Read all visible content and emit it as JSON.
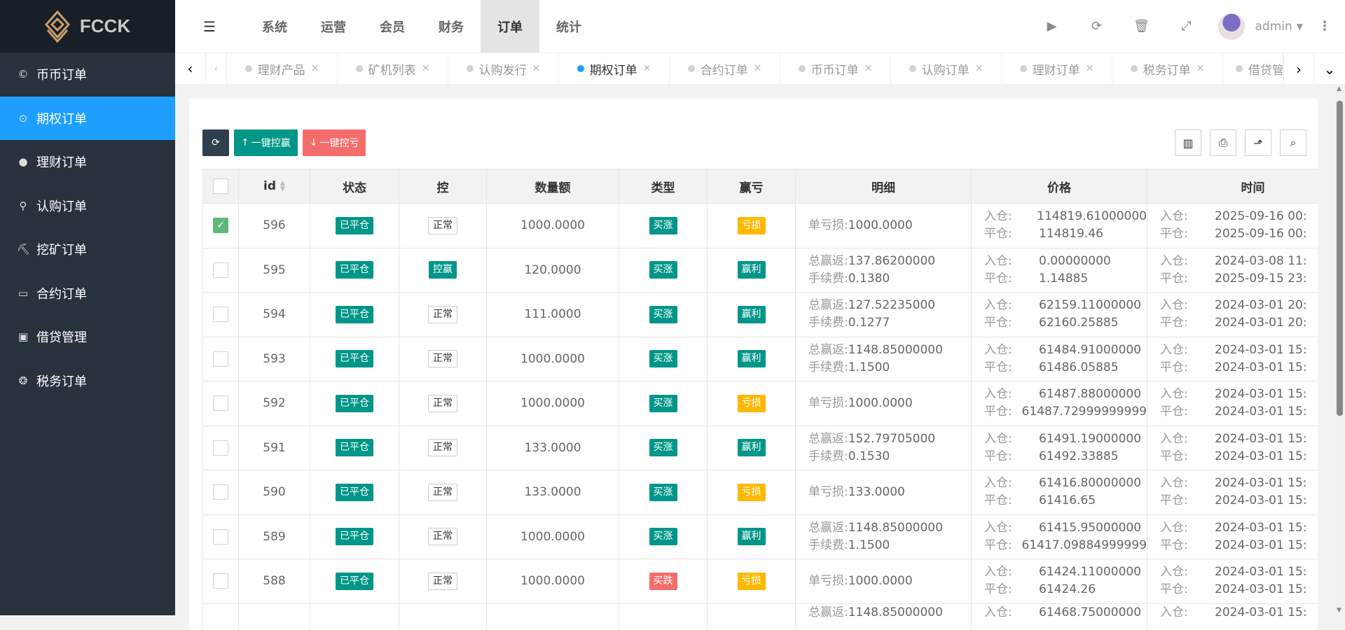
{
  "brand": {
    "name": "FCCK"
  },
  "sidebar": {
    "items": [
      {
        "label": "币币订单",
        "icon": "cc-icon",
        "glyph": "©"
      },
      {
        "label": "期权订单",
        "icon": "target-icon",
        "glyph": "⊙",
        "active": true
      },
      {
        "label": "理财订单",
        "icon": "money-icon",
        "glyph": "●"
      },
      {
        "label": "认购订单",
        "icon": "walk-icon",
        "glyph": "⚲"
      },
      {
        "label": "挖矿订单",
        "icon": "mining-icon",
        "glyph": "⛏"
      },
      {
        "label": "合约订单",
        "icon": "monitor-icon",
        "glyph": "▭"
      },
      {
        "label": "借贷管理",
        "icon": "cash-icon",
        "glyph": "▣"
      },
      {
        "label": "税务订单",
        "icon": "coins-icon",
        "glyph": "❂"
      }
    ]
  },
  "header": {
    "nav": [
      {
        "label": "系统"
      },
      {
        "label": "运营"
      },
      {
        "label": "会员"
      },
      {
        "label": "财务"
      },
      {
        "label": "订单",
        "active": true
      },
      {
        "label": "统计"
      }
    ],
    "user": "admin"
  },
  "tabs": [
    {
      "label": "理财产品"
    },
    {
      "label": "矿机列表"
    },
    {
      "label": "认购发行"
    },
    {
      "label": "期权订单",
      "active": true
    },
    {
      "label": "合约订单"
    },
    {
      "label": "币币订单"
    },
    {
      "label": "认购订单"
    },
    {
      "label": "理财订单"
    },
    {
      "label": "税务订单"
    },
    {
      "label": "借贷管"
    }
  ],
  "toolbar": {
    "win_label": "一键控赢",
    "lose_label": "一键控亏"
  },
  "colors": {
    "accent": "#1e9fff",
    "teal": "#009688",
    "red": "#f56c6c",
    "yellow": "#ffb800",
    "sidebar": "#28333e"
  },
  "table": {
    "headers": [
      "id",
      "状态",
      "控",
      "数量额",
      "类型",
      "赢亏",
      "明细",
      "价格",
      "时间"
    ],
    "labels": {
      "in": "入仓:",
      "out": "平仓:"
    },
    "rows": [
      {
        "checked": true,
        "id": "596",
        "status": "已平仓",
        "ctrl": "正常",
        "amount": "1000.0000",
        "type": "买涨",
        "pl": "亏损",
        "detail": [
          [
            "单亏损:",
            "1000.0000"
          ]
        ],
        "price": [
          "114819.61000000",
          "114819.46"
        ],
        "time": [
          "2025-09-16 00:",
          "2025-09-16 00:"
        ]
      },
      {
        "id": "595",
        "status": "已平仓",
        "ctrl": "控赢",
        "amount": "120.0000",
        "type": "买涨",
        "pl": "赢利",
        "detail": [
          [
            "总赢返:",
            "137.86200000"
          ],
          [
            "手续费:",
            "0.1380"
          ]
        ],
        "price": [
          "0.00000000",
          "1.14885"
        ],
        "time": [
          "2024-03-08 11:",
          "2025-09-15 23:"
        ]
      },
      {
        "id": "594",
        "status": "已平仓",
        "ctrl": "正常",
        "amount": "111.0000",
        "type": "买涨",
        "pl": "赢利",
        "detail": [
          [
            "总赢返:",
            "127.52235000"
          ],
          [
            "手续费:",
            "0.1277"
          ]
        ],
        "price": [
          "62159.11000000",
          "62160.25885"
        ],
        "time": [
          "2024-03-01 20:",
          "2024-03-01 20:"
        ]
      },
      {
        "id": "593",
        "status": "已平仓",
        "ctrl": "正常",
        "amount": "1000.0000",
        "type": "买涨",
        "pl": "赢利",
        "detail": [
          [
            "总赢返:",
            "1148.85000000"
          ],
          [
            "手续费:",
            "1.1500"
          ]
        ],
        "price": [
          "61484.91000000",
          "61486.05885"
        ],
        "time": [
          "2024-03-01 15:",
          "2024-03-01 15:"
        ]
      },
      {
        "id": "592",
        "status": "已平仓",
        "ctrl": "正常",
        "amount": "1000.0000",
        "type": "买涨",
        "pl": "亏损",
        "detail": [
          [
            "单亏损:",
            "1000.0000"
          ]
        ],
        "price": [
          "61487.88000000",
          "61487.72999999999"
        ],
        "time": [
          "2024-03-01 15:",
          "2024-03-01 15:"
        ]
      },
      {
        "id": "591",
        "status": "已平仓",
        "ctrl": "正常",
        "amount": "133.0000",
        "type": "买涨",
        "pl": "赢利",
        "detail": [
          [
            "总赢返:",
            "152.79705000"
          ],
          [
            "手续费:",
            "0.1530"
          ]
        ],
        "price": [
          "61491.19000000",
          "61492.33885"
        ],
        "time": [
          "2024-03-01 15:",
          "2024-03-01 15:"
        ]
      },
      {
        "id": "590",
        "status": "已平仓",
        "ctrl": "正常",
        "amount": "133.0000",
        "type": "买涨",
        "pl": "亏损",
        "detail": [
          [
            "单亏损:",
            "133.0000"
          ]
        ],
        "price": [
          "61416.80000000",
          "61416.65"
        ],
        "time": [
          "2024-03-01 15:",
          "2024-03-01 15:"
        ]
      },
      {
        "id": "589",
        "status": "已平仓",
        "ctrl": "正常",
        "amount": "1000.0000",
        "type": "买涨",
        "pl": "赢利",
        "detail": [
          [
            "总赢返:",
            "1148.85000000"
          ],
          [
            "手续费:",
            "1.1500"
          ]
        ],
        "price": [
          "61415.95000000",
          "61417.09884999999"
        ],
        "time": [
          "2024-03-01 15:",
          "2024-03-01 15:"
        ]
      },
      {
        "id": "588",
        "status": "已平仓",
        "ctrl": "正常",
        "amount": "1000.0000",
        "type": "买跌",
        "pl": "亏损",
        "detail": [
          [
            "单亏损:",
            "1000.0000"
          ]
        ],
        "price": [
          "61424.11000000",
          "61424.26"
        ],
        "time": [
          "2024-03-01 15:",
          "2024-03-01 15:"
        ]
      },
      {
        "partial": true,
        "detail": [
          [
            "总赢返:",
            "1148.85000000"
          ]
        ],
        "price": [
          "61468.75000000"
        ],
        "time": [
          "2024-03-01 15:"
        ]
      }
    ]
  }
}
